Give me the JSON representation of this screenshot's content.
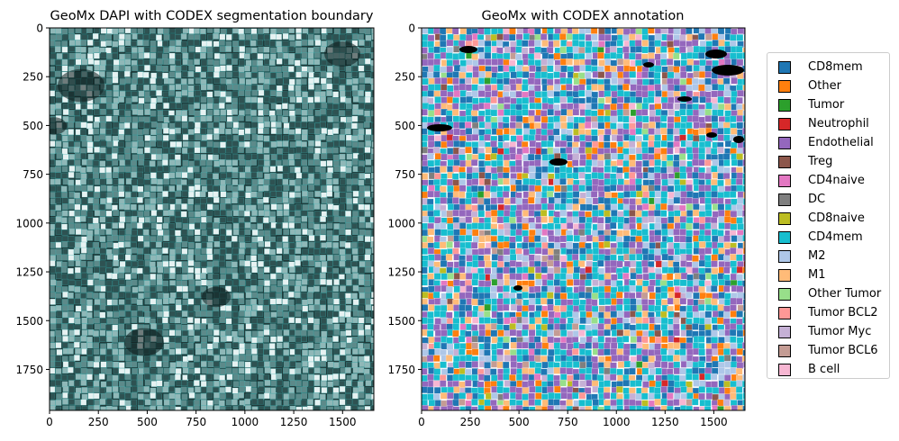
{
  "chart_data": [
    {
      "type": "image",
      "title": "GeoMx DAPI with CODEX segmentation boundary",
      "xlim": [
        0,
        1660
      ],
      "ylim": [
        1960,
        0
      ],
      "xticks": [
        0,
        250,
        500,
        750,
        1000,
        1250,
        1500
      ],
      "yticks": [
        0,
        250,
        500,
        750,
        1000,
        1250,
        1500,
        1750
      ],
      "xtick_labels": [
        "0",
        "250",
        "500",
        "750",
        "1000",
        "1250",
        "1500"
      ],
      "ytick_labels": [
        "0",
        "250",
        "500",
        "750",
        "1000",
        "1250",
        "1500",
        "1750"
      ],
      "background_color": "#1f3a3a",
      "boundary_color": "#3fb8b8"
    },
    {
      "type": "image",
      "title": "GeoMx with CODEX annotation",
      "xlim": [
        0,
        1660
      ],
      "ylim": [
        1960,
        0
      ],
      "xticks": [
        0,
        250,
        500,
        750,
        1000,
        1250,
        1500
      ],
      "yticks": [
        0,
        250,
        500,
        750,
        1000,
        1250,
        1500,
        1750
      ],
      "xtick_labels": [
        "0",
        "250",
        "500",
        "750",
        "1000",
        "1250",
        "1500"
      ],
      "ytick_labels": [
        "0",
        "250",
        "500",
        "750",
        "1000",
        "1250",
        "1500",
        "1750"
      ],
      "legend_position": "right",
      "legend": [
        {
          "label": "CD8mem",
          "color": "#1f77b4"
        },
        {
          "label": "Other",
          "color": "#ff7f0e"
        },
        {
          "label": "Tumor",
          "color": "#2ca02c"
        },
        {
          "label": "Neutrophil",
          "color": "#d62728"
        },
        {
          "label": "Endothelial",
          "color": "#9467bd"
        },
        {
          "label": "Treg",
          "color": "#8c564b"
        },
        {
          "label": "CD4naive",
          "color": "#e377c2"
        },
        {
          "label": "DC",
          "color": "#7f7f7f"
        },
        {
          "label": "CD8naive",
          "color": "#bcbd22"
        },
        {
          "label": "CD4mem",
          "color": "#17becf"
        },
        {
          "label": "M2",
          "color": "#aec7e8"
        },
        {
          "label": "M1",
          "color": "#ffbb78"
        },
        {
          "label": "Other Tumor",
          "color": "#98df8a"
        },
        {
          "label": "Tumor BCL2",
          "color": "#ff9896"
        },
        {
          "label": "Tumor Myc",
          "color": "#c5b0d5"
        },
        {
          "label": "Tumor BCL6",
          "color": "#c49c94"
        },
        {
          "label": "B cell",
          "color": "#f7b6d2"
        }
      ]
    }
  ]
}
